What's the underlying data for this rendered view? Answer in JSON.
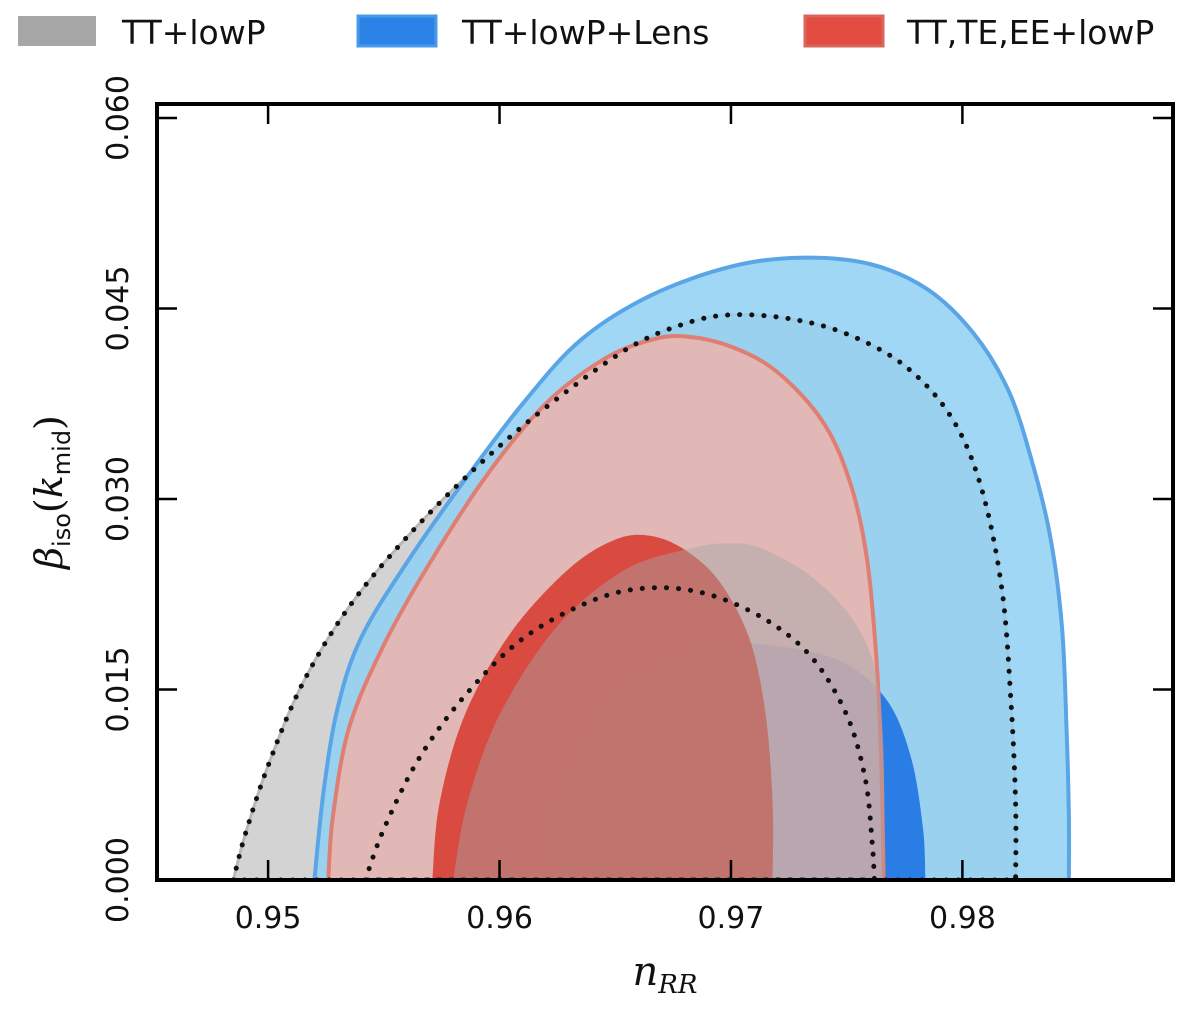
{
  "chart_data": {
    "type": "contour",
    "title": "",
    "xlabel": "n",
    "xlabel_sub": "RR",
    "ylabel": "β",
    "ylabel_sub": "iso",
    "ylabel_arg_var": "k",
    "ylabel_arg_sub": "mid",
    "xlim": [
      0.9452,
      0.9891
    ],
    "ylim": [
      0.0,
      0.0611
    ],
    "xticks": [
      0.95,
      0.96,
      0.97,
      0.98
    ],
    "xtick_labels": [
      "0.95",
      "0.96",
      "0.97",
      "0.98"
    ],
    "yticks": [
      0.0,
      0.015,
      0.03,
      0.045,
      0.06
    ],
    "ytick_labels": [
      "0.000",
      "0.015",
      "0.030",
      "0.045",
      "0.060"
    ],
    "legend": [
      {
        "label": "TT+lowP",
        "color": "#a6a6a6"
      },
      {
        "label": "TT+lowP+Lens",
        "color": "#2b83e8"
      },
      {
        "label": "TT,TE,EE+lowP",
        "color": "#e24c41"
      }
    ],
    "series": [
      {
        "name": "TT+lowP",
        "style": "dotted",
        "outer_95": [
          [
            0.9485,
            0.0
          ],
          [
            0.949,
            0.0035
          ],
          [
            0.95,
            0.009
          ],
          [
            0.9515,
            0.0155
          ],
          [
            0.9535,
            0.0215
          ],
          [
            0.956,
            0.027
          ],
          [
            0.959,
            0.0325
          ],
          [
            0.962,
            0.0372
          ],
          [
            0.9655,
            0.0418
          ],
          [
            0.968,
            0.0438
          ],
          [
            0.97,
            0.0445
          ],
          [
            0.9725,
            0.0442
          ],
          [
            0.975,
            0.043
          ],
          [
            0.9775,
            0.0405
          ],
          [
            0.9795,
            0.0365
          ],
          [
            0.9808,
            0.031
          ],
          [
            0.9817,
            0.023
          ],
          [
            0.9821,
            0.014
          ],
          [
            0.9823,
            0.006
          ],
          [
            0.9823,
            0.0
          ]
        ],
        "inner_68": [
          [
            0.9542,
            0.0
          ],
          [
            0.955,
            0.004
          ],
          [
            0.9565,
            0.0095
          ],
          [
            0.9585,
            0.0145
          ],
          [
            0.961,
            0.019
          ],
          [
            0.964,
            0.022
          ],
          [
            0.9665,
            0.023
          ],
          [
            0.969,
            0.0225
          ],
          [
            0.9715,
            0.0205
          ],
          [
            0.9735,
            0.0175
          ],
          [
            0.975,
            0.013
          ],
          [
            0.9758,
            0.008
          ],
          [
            0.9761,
            0.003
          ],
          [
            0.9762,
            0.0
          ]
        ],
        "fill_68": [
          [
            0.958,
            0.0
          ],
          [
            0.9586,
            0.006
          ],
          [
            0.96,
            0.013
          ],
          [
            0.9625,
            0.02
          ],
          [
            0.9655,
            0.0245
          ],
          [
            0.9685,
            0.0262
          ],
          [
            0.97,
            0.0265
          ],
          [
            0.9712,
            0.0262
          ],
          [
            0.973,
            0.0245
          ],
          [
            0.9745,
            0.0222
          ],
          [
            0.9756,
            0.0195
          ],
          [
            0.9763,
            0.016
          ],
          [
            0.9766,
            0.01
          ],
          [
            0.9766,
            0.0
          ]
        ]
      },
      {
        "name": "TT+lowP+Lens",
        "style": "filled",
        "outer_95": [
          [
            0.952,
            0.0
          ],
          [
            0.9524,
            0.007
          ],
          [
            0.953,
            0.0135
          ],
          [
            0.954,
            0.019
          ],
          [
            0.956,
            0.025
          ],
          [
            0.9585,
            0.0315
          ],
          [
            0.961,
            0.0375
          ],
          [
            0.9635,
            0.0425
          ],
          [
            0.9665,
            0.046
          ],
          [
            0.97,
            0.0483
          ],
          [
            0.973,
            0.049
          ],
          [
            0.976,
            0.0485
          ],
          [
            0.9785,
            0.0465
          ],
          [
            0.9805,
            0.043
          ],
          [
            0.982,
            0.0385
          ],
          [
            0.983,
            0.033
          ],
          [
            0.9838,
            0.027
          ],
          [
            0.9843,
            0.02
          ],
          [
            0.9845,
            0.012
          ],
          [
            0.9846,
            0.005
          ],
          [
            0.9846,
            0.0
          ]
        ],
        "inner_68": [
          [
            0.962,
            0.0
          ],
          [
            0.9624,
            0.006
          ],
          [
            0.964,
            0.012
          ],
          [
            0.9665,
            0.0165
          ],
          [
            0.9695,
            0.0185
          ],
          [
            0.9725,
            0.0183
          ],
          [
            0.975,
            0.017
          ],
          [
            0.9768,
            0.014
          ],
          [
            0.9778,
            0.0095
          ],
          [
            0.9783,
            0.004
          ],
          [
            0.9784,
            0.0
          ]
        ]
      },
      {
        "name": "TT,TE,EE+lowP",
        "style": "filled",
        "outer_95": [
          [
            0.9526,
            0.0
          ],
          [
            0.9528,
            0.005
          ],
          [
            0.9535,
            0.012
          ],
          [
            0.955,
            0.0185
          ],
          [
            0.957,
            0.025
          ],
          [
            0.9595,
            0.032
          ],
          [
            0.962,
            0.0375
          ],
          [
            0.9645,
            0.041
          ],
          [
            0.9665,
            0.0425
          ],
          [
            0.968,
            0.0428
          ],
          [
            0.97,
            0.042
          ],
          [
            0.972,
            0.04
          ],
          [
            0.974,
            0.036
          ],
          [
            0.9752,
            0.031
          ],
          [
            0.9759,
            0.025
          ],
          [
            0.9763,
            0.017
          ],
          [
            0.9765,
            0.009
          ],
          [
            0.9766,
            0.0
          ]
        ],
        "inner_68": [
          [
            0.9571,
            0.0
          ],
          [
            0.9574,
            0.006
          ],
          [
            0.9585,
            0.013
          ],
          [
            0.9605,
            0.0195
          ],
          [
            0.963,
            0.0245
          ],
          [
            0.965,
            0.0268
          ],
          [
            0.9665,
            0.0271
          ],
          [
            0.968,
            0.026
          ],
          [
            0.9695,
            0.0235
          ],
          [
            0.9708,
            0.019
          ],
          [
            0.9715,
            0.013
          ],
          [
            0.9718,
            0.006
          ],
          [
            0.9718,
            0.0
          ]
        ]
      }
    ]
  }
}
